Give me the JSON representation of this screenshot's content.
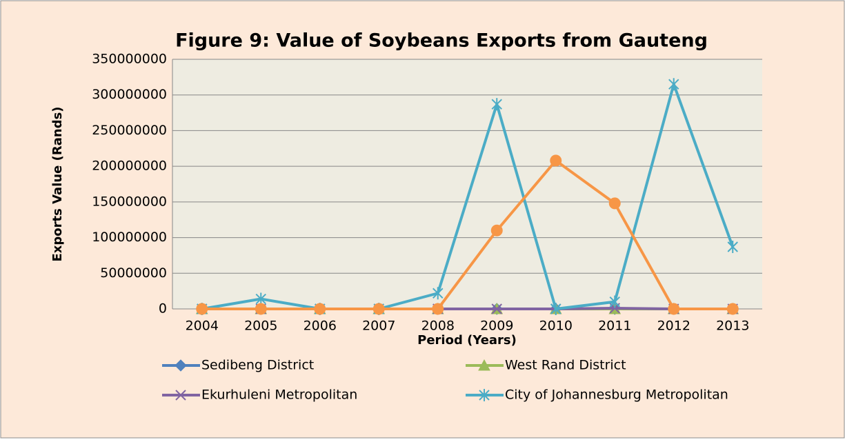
{
  "chart_data": {
    "type": "line",
    "title": "Figure 9: Value of Soybeans Exports from Gauteng",
    "x_label": "Period (Years)",
    "y_label": "Exports Value (Rands)",
    "categories": [
      "2004",
      "2005",
      "2006",
      "2007",
      "2008",
      "2009",
      "2010",
      "2011",
      "2012",
      "2013"
    ],
    "ylim": [
      0,
      350000000
    ],
    "yticks": [
      0,
      50000000,
      100000000,
      150000000,
      200000000,
      250000000,
      300000000,
      350000000
    ],
    "grid": true,
    "legend": "bottom",
    "series": [
      {
        "name": "Sedibeng District",
        "color": "#4f81bd",
        "marker": "diamond",
        "values": [
          0,
          0,
          0,
          0,
          0,
          0,
          0,
          0,
          0,
          0
        ]
      },
      {
        "name": "West Rand District",
        "color": "#9bbb59",
        "marker": "triangle",
        "values": [
          0,
          0,
          0,
          0,
          0,
          0,
          0,
          0,
          0,
          0
        ]
      },
      {
        "name": "Ekurhuleni Metropolitan",
        "color": "#8064a2",
        "marker": "x",
        "values": [
          0,
          0,
          0,
          0,
          0,
          0,
          0,
          1000000,
          0,
          0
        ]
      },
      {
        "name": "City of Johannesburg Metropolitan",
        "color": "#4bacc6",
        "marker": "star",
        "values": [
          0,
          14000000,
          0,
          0,
          22000000,
          287000000,
          0,
          10000000,
          315000000,
          87000000
        ]
      },
      {
        "color": "#f79646",
        "marker": "circle",
        "values": [
          0,
          0,
          0,
          0,
          0,
          110000000,
          208000000,
          148000000,
          0,
          0
        ]
      }
    ]
  }
}
